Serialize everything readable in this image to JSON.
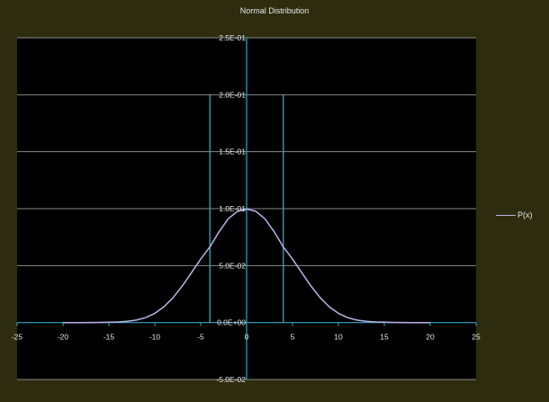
{
  "chart_data": {
    "type": "line",
    "title": "Normal Distribution",
    "xlabel": "",
    "ylabel": "",
    "xlim": [
      -25,
      25
    ],
    "ylim": [
      -0.05,
      0.25
    ],
    "x_ticks": [
      -25,
      -20,
      -15,
      -10,
      -5,
      0,
      5,
      10,
      15,
      20,
      25
    ],
    "x_tick_labels": [
      "-25",
      "-20",
      "-15",
      "-10",
      "-5",
      "0",
      "5",
      "10",
      "15",
      "20",
      "25"
    ],
    "y_ticks": [
      -0.05,
      0,
      0.05,
      0.1,
      0.15,
      0.2,
      0.25
    ],
    "y_tick_labels": [
      "-5.0E-02",
      "0.0E+00",
      "5.0E-02",
      "1.0E-01",
      "1.5E-01",
      "2.0E-01",
      "2.5E-01"
    ],
    "grid": "horizontal",
    "legend": "right",
    "series": [
      {
        "name": "P(x)",
        "color": "#b8b4e6",
        "x": [
          -20,
          -18,
          -16,
          -14,
          -13,
          -12,
          -11,
          -10,
          -9,
          -8,
          -7,
          -6,
          -5,
          -4,
          -3,
          -2,
          -1,
          0,
          1,
          2,
          3,
          4,
          5,
          6,
          7,
          8,
          9,
          10,
          11,
          12,
          13,
          14,
          16,
          18,
          20
        ],
        "y": [
          0.0,
          0.0,
          0.0001,
          0.0005,
          0.0011,
          0.0022,
          0.0043,
          0.0081,
          0.0139,
          0.022,
          0.0322,
          0.0439,
          0.0557,
          0.0664,
          0.0797,
          0.0911,
          0.0977,
          0.0997,
          0.0977,
          0.0911,
          0.0797,
          0.0664,
          0.0557,
          0.0439,
          0.0322,
          0.022,
          0.0139,
          0.0081,
          0.0043,
          0.0022,
          0.0011,
          0.0005,
          0.0001,
          0.0,
          0.0
        ]
      }
    ],
    "vertical_lines": [
      {
        "x": -4,
        "y_from": 0,
        "y_to": 0.2,
        "color": "#3aa6c2"
      },
      {
        "x": 4,
        "y_from": 0,
        "y_to": 0.2,
        "color": "#3aa6c2"
      }
    ],
    "colors": {
      "frame": "#2d2c0e",
      "plot_area": "#000000",
      "gridline": "#8a8a8a",
      "axis": "#3aa6c2",
      "text": "#e8e8e8"
    }
  }
}
